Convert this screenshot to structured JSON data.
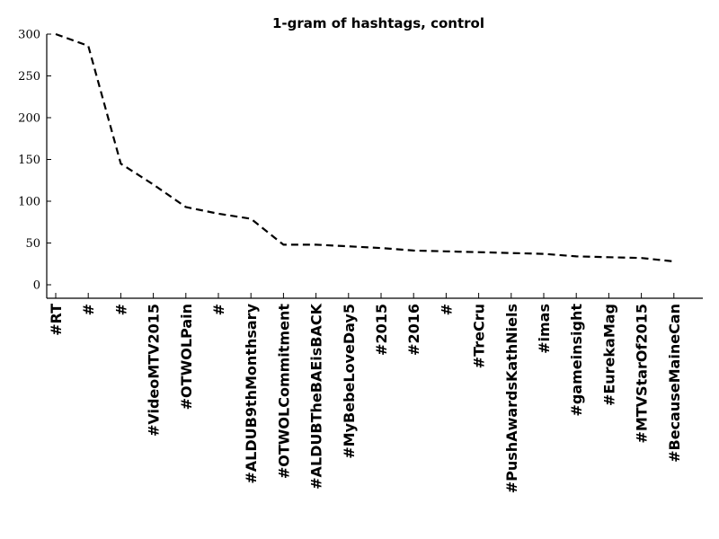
{
  "chart_data": {
    "type": "line",
    "title": "1-gram of hashtags, control",
    "xlabel": "",
    "ylabel": "",
    "ylim": [
      0,
      300
    ],
    "yticks": [
      0,
      50,
      100,
      150,
      200,
      250,
      300
    ],
    "grid": false,
    "categories": [
      "#RT",
      "#",
      "#",
      "#VideoMTV2015",
      "#OTWOLPain",
      "#",
      "#ALDUB9thMonthsary",
      "#OTWOLCommitment",
      "#ALDUBTheBAEisBACK",
      "#MyBebeLoveDay5",
      "#2015",
      "#2016",
      "#",
      "#TreCru",
      "#PushAwardsKathNiels",
      "#imas",
      "#gameinsight",
      "#EurekaMag",
      "#MTVStarOf2015",
      "#BecauseMaineCan"
    ],
    "series": [
      {
        "values": [
          300,
          286,
          145,
          120,
          93,
          85,
          79,
          48,
          48,
          46,
          44,
          41,
          40,
          39,
          38,
          37,
          34,
          33,
          32,
          28
        ],
        "color": "#000000",
        "style": "dashed"
      }
    ]
  }
}
